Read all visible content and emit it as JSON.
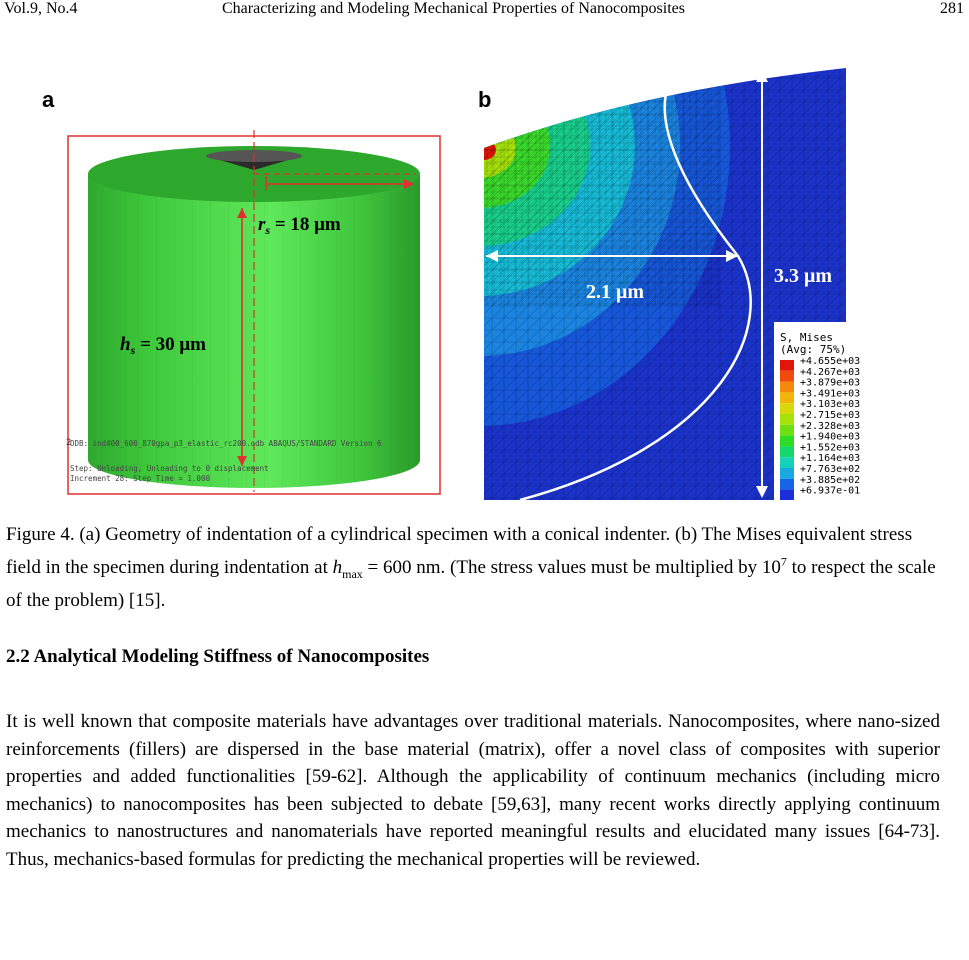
{
  "header": {
    "volume": "Vol.9, No.4",
    "title": "Characterizing and Modeling Mechanical Properties of  Nanocomposites",
    "page": "281"
  },
  "figure": {
    "panel_a": {
      "letter": "a",
      "radius_label": "r",
      "radius_sub": "s",
      "radius_value": " = 18 μm",
      "height_label": "h",
      "height_sub": "s",
      "height_value": " = 30 μm",
      "axis_2": "2",
      "axis_3": "3",
      "odb_line": "ODB: ind400_600_870gpa_p3_elastic_rc200.odb    ABAQUS/STANDARD Version 6",
      "step_line": "Step: Unloading, Unloading to 0 displacement",
      "increment_line": "Increment     28: Step Time =   1.000"
    },
    "panel_b": {
      "letter": "b",
      "width_label": "2.1 μm",
      "height_label": "3.3 μm",
      "legend_title_1": "S, Mises",
      "legend_title_2": "(Avg: 75%)",
      "legend_values": [
        "+4.655e+03",
        "+4.267e+03",
        "+3.879e+03",
        "+3.491e+03",
        "+3.103e+03",
        "+2.715e+03",
        "+2.328e+03",
        "+1.940e+03",
        "+1.552e+03",
        "+1.164e+03",
        "+7.763e+02",
        "+3.885e+02",
        "+6.937e-01"
      ],
      "legend_colors": [
        "#e0160b",
        "#f04a0c",
        "#f58a0a",
        "#f2b40a",
        "#d8d80a",
        "#a6e20a",
        "#6ee012",
        "#2fdc24",
        "#14d86a",
        "#16d0b8",
        "#1aa8e0",
        "#1566e6",
        "#1a2fd8"
      ]
    },
    "caption": {
      "part1": "Figure 4. (a) Geometry of indentation of a cylindrical specimen with a conical indenter. (b) The Mises equivalent stress field in the specimen during indentation at ",
      "h": "h",
      "max": "max",
      "part2": " = 600 nm. (The stress values must be multiplied by 10",
      "exp": "7",
      "part3": " to respect the scale of the problem) [15]."
    }
  },
  "section_heading": "2.2 Analytical Modeling Stiffness of Nanocomposites",
  "paragraph": "It is well known that composite materials have advantages over traditional materials. Nanocomposites, where nano-sized reinforcements (fillers) are dispersed in the base material (matrix), offer a novel class of composites with superior properties and added functionalities [59-62].   Although the applicability of continuum mechanics (including micro mechanics) to nanocomposites has been subjected to debate [59,63], many recent works directly applying continuum mechanics to nanostructures and nanomaterials have reported meaningful results and elucidated many issues [64-73]. Thus, mechanics-based formulas for predicting the mechanical properties will be reviewed."
}
